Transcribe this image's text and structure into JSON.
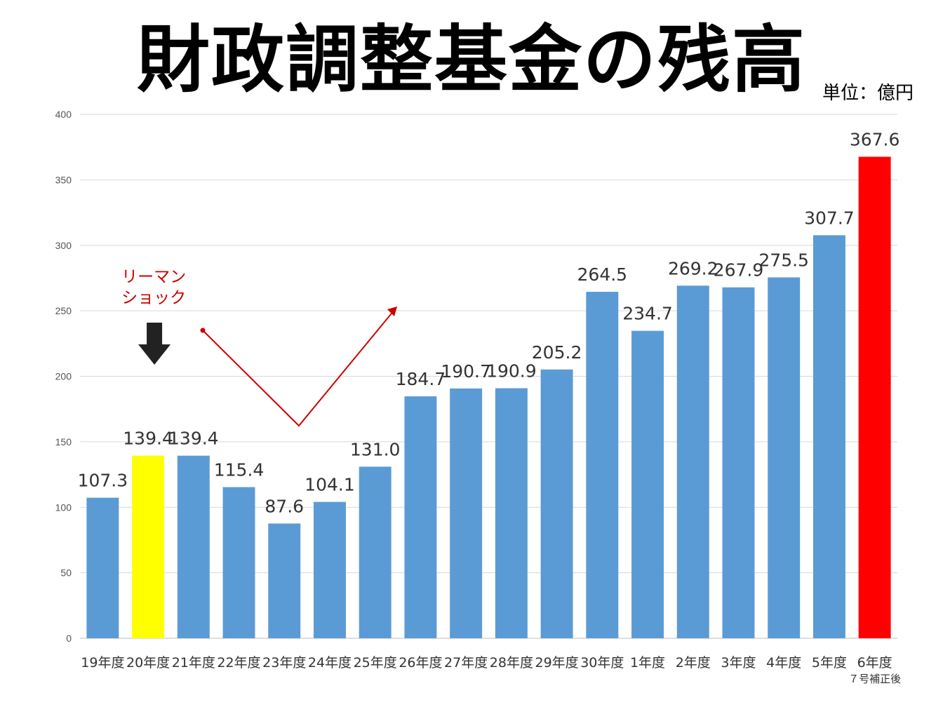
{
  "title": "財政調整基金の残高",
  "unit_label": "単位：億円",
  "chart_data": {
    "type": "bar",
    "categories": [
      "19年度",
      "20年度",
      "21年度",
      "22年度",
      "23年度",
      "24年度",
      "25年度",
      "26年度",
      "27年度",
      "28年度",
      "29年度",
      "30年度",
      "1年度",
      "2年度",
      "3年度",
      "4年度",
      "5年度",
      "6年度"
    ],
    "category_sublabels": {
      "6年度": "７号補正後"
    },
    "values": [
      107.3,
      139.4,
      139.4,
      115.4,
      87.6,
      104.1,
      131.0,
      184.7,
      190.7,
      190.9,
      205.2,
      264.5,
      234.7,
      269.2,
      267.9,
      275.5,
      307.7,
      367.6
    ],
    "value_labels": [
      "107.3",
      "139.4",
      "139.4",
      "115.4",
      "87.6",
      "104.1",
      "131.0",
      "184.7",
      "190.7",
      "190.9",
      "205.2",
      "264.5",
      "234.7",
      "269.2",
      "267.9",
      "275.5",
      "307.7",
      "367.6"
    ],
    "ylim": [
      0,
      400
    ],
    "yticks": [
      0,
      50,
      100,
      150,
      200,
      250,
      300,
      350,
      400
    ],
    "grid": true,
    "bar_color": "#5b9bd5",
    "highlight_colors": {
      "20年度": "#ffff00",
      "6年度": "#ff0000"
    },
    "annotation": {
      "text_lines": [
        "リーマン",
        "ショック"
      ],
      "target_category": "20年度",
      "color": "#cc0000",
      "arrow_color": "#222222"
    }
  }
}
